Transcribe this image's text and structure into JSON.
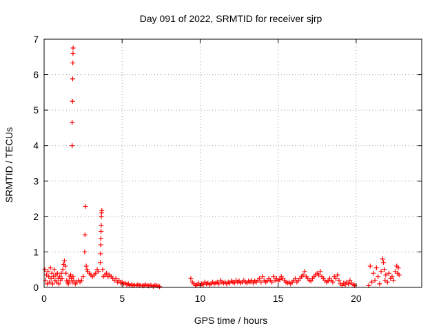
{
  "chart_data": {
    "type": "scatter",
    "title": "Day 091 of 2022, SRMTID for receiver sjrp",
    "xlabel": "GPS time / hours",
    "ylabel": "SRMTID / TECUs",
    "xlim": [
      0,
      24.2
    ],
    "ylim": [
      0,
      7
    ],
    "xticks": [
      0,
      5,
      10,
      15,
      20
    ],
    "yticks": [
      0,
      1,
      2,
      3,
      4,
      5,
      6,
      7
    ],
    "grid": true,
    "marker": "plus",
    "color": "#ff0000",
    "series": [
      {
        "points": [
          [
            0.05,
            0.5
          ],
          [
            0.1,
            0.2
          ],
          [
            0.15,
            0.35
          ],
          [
            0.2,
            0.1
          ],
          [
            0.25,
            0.45
          ],
          [
            0.3,
            0.3
          ],
          [
            0.35,
            0.15
          ],
          [
            0.4,
            0.55
          ],
          [
            0.45,
            0.25
          ],
          [
            0.5,
            0.4
          ],
          [
            0.55,
            0.1
          ],
          [
            0.6,
            0.3
          ],
          [
            0.65,
            0.5
          ],
          [
            0.7,
            0.2
          ],
          [
            0.75,
            0.35
          ],
          [
            0.8,
            0.15
          ],
          [
            0.85,
            0.4
          ],
          [
            0.9,
            0.25
          ],
          [
            0.95,
            0.1
          ],
          [
            1.0,
            0.3
          ],
          [
            1.05,
            0.2
          ],
          [
            1.1,
            0.4
          ],
          [
            1.15,
            0.25
          ],
          [
            1.2,
            0.5
          ],
          [
            1.25,
            0.65
          ],
          [
            1.3,
            0.75
          ],
          [
            1.35,
            0.6
          ],
          [
            1.4,
            0.4
          ],
          [
            1.45,
            0.2
          ],
          [
            1.5,
            0.15
          ],
          [
            1.55,
            0.1
          ],
          [
            1.6,
            0.2
          ],
          [
            1.65,
            0.3
          ],
          [
            1.7,
            0.35
          ],
          [
            1.75,
            0.25
          ],
          [
            1.8,
            0.15
          ],
          [
            1.85,
            0.3
          ],
          [
            1.8,
            4.0
          ],
          [
            1.8,
            4.65
          ],
          [
            1.82,
            5.25
          ],
          [
            1.83,
            5.88
          ],
          [
            1.84,
            6.33
          ],
          [
            1.85,
            6.6
          ],
          [
            1.86,
            6.75
          ],
          [
            1.9,
            0.2
          ],
          [
            2.0,
            0.1
          ],
          [
            2.1,
            0.15
          ],
          [
            2.2,
            0.2
          ],
          [
            2.3,
            0.15
          ],
          [
            2.4,
            0.2
          ],
          [
            2.5,
            0.3
          ],
          [
            2.6,
            1.0
          ],
          [
            2.62,
            1.48
          ],
          [
            2.65,
            2.28
          ],
          [
            2.7,
            0.6
          ],
          [
            2.75,
            0.5
          ],
          [
            2.8,
            0.45
          ],
          [
            2.9,
            0.4
          ],
          [
            3.0,
            0.35
          ],
          [
            3.1,
            0.3
          ],
          [
            3.2,
            0.35
          ],
          [
            3.3,
            0.4
          ],
          [
            3.4,
            0.5
          ],
          [
            3.5,
            0.45
          ],
          [
            3.6,
            0.7
          ],
          [
            3.62,
            0.95
          ],
          [
            3.63,
            1.2
          ],
          [
            3.64,
            1.38
          ],
          [
            3.65,
            1.58
          ],
          [
            3.66,
            1.75
          ],
          [
            3.67,
            2.0
          ],
          [
            3.68,
            2.1
          ],
          [
            3.7,
            2.17
          ],
          [
            3.75,
            0.5
          ],
          [
            3.8,
            0.3
          ],
          [
            3.9,
            0.35
          ],
          [
            4.0,
            0.4
          ],
          [
            4.1,
            0.3
          ],
          [
            4.2,
            0.35
          ],
          [
            4.3,
            0.3
          ],
          [
            4.4,
            0.25
          ],
          [
            4.5,
            0.2
          ],
          [
            4.6,
            0.25
          ],
          [
            4.7,
            0.15
          ],
          [
            4.8,
            0.2
          ],
          [
            4.9,
            0.12
          ],
          [
            5.0,
            0.15
          ],
          [
            5.1,
            0.1
          ],
          [
            5.2,
            0.12
          ],
          [
            5.3,
            0.08
          ],
          [
            5.4,
            0.1
          ],
          [
            5.5,
            0.05
          ],
          [
            5.6,
            0.08
          ],
          [
            5.7,
            0.05
          ],
          [
            5.8,
            0.06
          ],
          [
            5.9,
            0.05
          ],
          [
            6.0,
            0.08
          ],
          [
            6.1,
            0.05
          ],
          [
            6.2,
            0.06
          ],
          [
            6.3,
            0.04
          ],
          [
            6.4,
            0.05
          ],
          [
            6.5,
            0.08
          ],
          [
            6.6,
            0.05
          ],
          [
            6.7,
            0.04
          ],
          [
            6.8,
            0.06
          ],
          [
            6.9,
            0.05
          ],
          [
            7.0,
            0.03
          ],
          [
            7.1,
            0.06
          ],
          [
            7.2,
            0.05
          ],
          [
            7.3,
            0.04
          ],
          [
            7.4,
            0.02
          ],
          [
            9.4,
            0.25
          ],
          [
            9.5,
            0.15
          ],
          [
            9.6,
            0.1
          ],
          [
            9.7,
            0.05
          ],
          [
            9.8,
            0.08
          ],
          [
            9.9,
            0.12
          ],
          [
            10.0,
            0.05
          ],
          [
            10.1,
            0.1
          ],
          [
            10.2,
            0.08
          ],
          [
            10.3,
            0.15
          ],
          [
            10.4,
            0.1
          ],
          [
            10.5,
            0.12
          ],
          [
            10.6,
            0.08
          ],
          [
            10.7,
            0.1
          ],
          [
            10.8,
            0.15
          ],
          [
            10.9,
            0.1
          ],
          [
            11.0,
            0.12
          ],
          [
            11.1,
            0.15
          ],
          [
            11.2,
            0.1
          ],
          [
            11.3,
            0.2
          ],
          [
            11.4,
            0.15
          ],
          [
            11.5,
            0.12
          ],
          [
            11.6,
            0.15
          ],
          [
            11.7,
            0.1
          ],
          [
            11.8,
            0.15
          ],
          [
            11.9,
            0.12
          ],
          [
            12.0,
            0.18
          ],
          [
            12.1,
            0.15
          ],
          [
            12.2,
            0.12
          ],
          [
            12.3,
            0.2
          ],
          [
            12.4,
            0.15
          ],
          [
            12.5,
            0.18
          ],
          [
            12.6,
            0.12
          ],
          [
            12.7,
            0.15
          ],
          [
            12.8,
            0.2
          ],
          [
            12.9,
            0.15
          ],
          [
            13.0,
            0.12
          ],
          [
            13.1,
            0.18
          ],
          [
            13.2,
            0.15
          ],
          [
            13.3,
            0.2
          ],
          [
            13.4,
            0.12
          ],
          [
            13.5,
            0.18
          ],
          [
            13.6,
            0.15
          ],
          [
            13.7,
            0.2
          ],
          [
            13.8,
            0.25
          ],
          [
            13.9,
            0.15
          ],
          [
            14.0,
            0.3
          ],
          [
            14.1,
            0.2
          ],
          [
            14.2,
            0.15
          ],
          [
            14.3,
            0.18
          ],
          [
            14.4,
            0.25
          ],
          [
            14.5,
            0.2
          ],
          [
            14.6,
            0.15
          ],
          [
            14.7,
            0.3
          ],
          [
            14.8,
            0.2
          ],
          [
            14.9,
            0.25
          ],
          [
            15.0,
            0.18
          ],
          [
            15.1,
            0.22
          ],
          [
            15.2,
            0.3
          ],
          [
            15.3,
            0.25
          ],
          [
            15.4,
            0.2
          ],
          [
            15.5,
            0.15
          ],
          [
            15.6,
            0.12
          ],
          [
            15.7,
            0.15
          ],
          [
            15.8,
            0.1
          ],
          [
            15.9,
            0.15
          ],
          [
            16.0,
            0.2
          ],
          [
            16.1,
            0.25
          ],
          [
            16.2,
            0.15
          ],
          [
            16.3,
            0.2
          ],
          [
            16.4,
            0.25
          ],
          [
            16.5,
            0.3
          ],
          [
            16.6,
            0.35
          ],
          [
            16.7,
            0.45
          ],
          [
            16.8,
            0.3
          ],
          [
            16.9,
            0.25
          ],
          [
            17.0,
            0.2
          ],
          [
            17.1,
            0.18
          ],
          [
            17.2,
            0.25
          ],
          [
            17.3,
            0.3
          ],
          [
            17.4,
            0.35
          ],
          [
            17.5,
            0.4
          ],
          [
            17.6,
            0.35
          ],
          [
            17.7,
            0.45
          ],
          [
            17.8,
            0.3
          ],
          [
            17.9,
            0.25
          ],
          [
            18.0,
            0.2
          ],
          [
            18.1,
            0.15
          ],
          [
            18.2,
            0.18
          ],
          [
            18.3,
            0.25
          ],
          [
            18.4,
            0.2
          ],
          [
            18.5,
            0.15
          ],
          [
            18.6,
            0.3
          ],
          [
            18.7,
            0.25
          ],
          [
            18.8,
            0.35
          ],
          [
            18.9,
            0.2
          ],
          [
            19.0,
            0.1
          ],
          [
            19.1,
            0.05
          ],
          [
            19.2,
            0.12
          ],
          [
            19.3,
            0.08
          ],
          [
            19.4,
            0.15
          ],
          [
            19.5,
            0.1
          ],
          [
            19.6,
            0.2
          ],
          [
            19.7,
            0.12
          ],
          [
            19.8,
            0.08
          ],
          [
            19.9,
            0.05
          ],
          [
            20.8,
            0.05
          ],
          [
            20.9,
            0.6
          ],
          [
            21.0,
            0.15
          ],
          [
            21.1,
            0.4
          ],
          [
            21.2,
            0.2
          ],
          [
            21.3,
            0.55
          ],
          [
            21.4,
            0.3
          ],
          [
            21.5,
            0.1
          ],
          [
            21.6,
            0.45
          ],
          [
            21.7,
            0.8
          ],
          [
            21.75,
            0.7
          ],
          [
            21.8,
            0.5
          ],
          [
            21.85,
            0.2
          ],
          [
            21.9,
            0.35
          ],
          [
            22.0,
            0.15
          ],
          [
            22.1,
            0.4
          ],
          [
            22.2,
            0.25
          ],
          [
            22.3,
            0.3
          ],
          [
            22.4,
            0.2
          ],
          [
            22.5,
            0.45
          ],
          [
            22.6,
            0.6
          ],
          [
            22.65,
            0.4
          ],
          [
            22.7,
            0.55
          ],
          [
            22.75,
            0.35
          ]
        ]
      }
    ]
  }
}
